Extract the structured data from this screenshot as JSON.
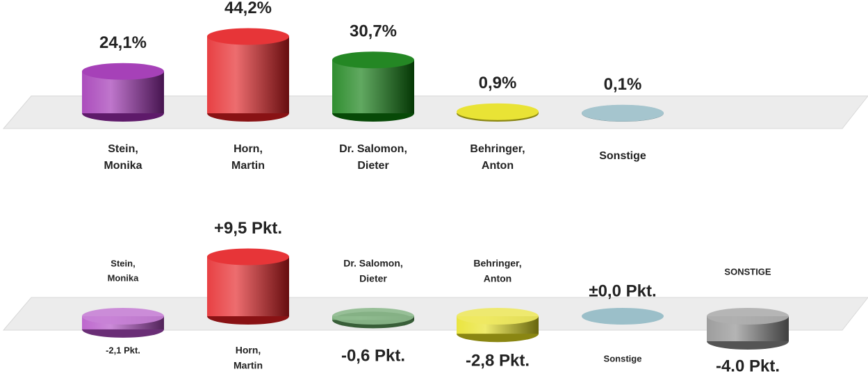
{
  "chart_data": [
    {
      "type": "bar",
      "categories": [
        [
          "Stein,",
          "Monika"
        ],
        [
          "Horn,",
          "Martin"
        ],
        [
          "Dr. Salomon,",
          "Dieter"
        ],
        [
          "Behringer,",
          "Anton"
        ],
        [
          "Sonstige"
        ]
      ],
      "values": [
        24.1,
        44.2,
        30.7,
        0.9,
        0.1
      ],
      "value_labels": [
        "24,1%",
        "44,2%",
        "30,7%",
        "0,9%",
        "0,1%"
      ],
      "colors": [
        "#9c2cb0",
        "#e41e22",
        "#0c7a0c",
        "#e6e01e",
        "#9bbfc9"
      ]
    },
    {
      "type": "bar",
      "categories": [
        [
          "Stein,",
          "Monika"
        ],
        [
          "Horn,",
          "Martin"
        ],
        [
          "Dr. Salomon,",
          "Dieter"
        ],
        [
          "Behringer,",
          "Anton"
        ],
        [
          "Sonstige"
        ],
        [
          "SONSTIGE"
        ]
      ],
      "values": [
        -2.1,
        9.5,
        -0.6,
        -2.8,
        0,
        -4.0
      ],
      "value_labels": [
        "-2,1 Pkt.",
        "+9,5 Pkt.",
        "-0,6 Pkt.",
        "-2,8 Pkt.",
        "±0,0 Pkt.",
        "-4.0 Pkt."
      ],
      "colors": [
        "#b14cc4",
        "#e41e22",
        "#5e9c5e",
        "#e6e01e",
        "#9bbfc9",
        "#8c8c8c"
      ]
    }
  ]
}
